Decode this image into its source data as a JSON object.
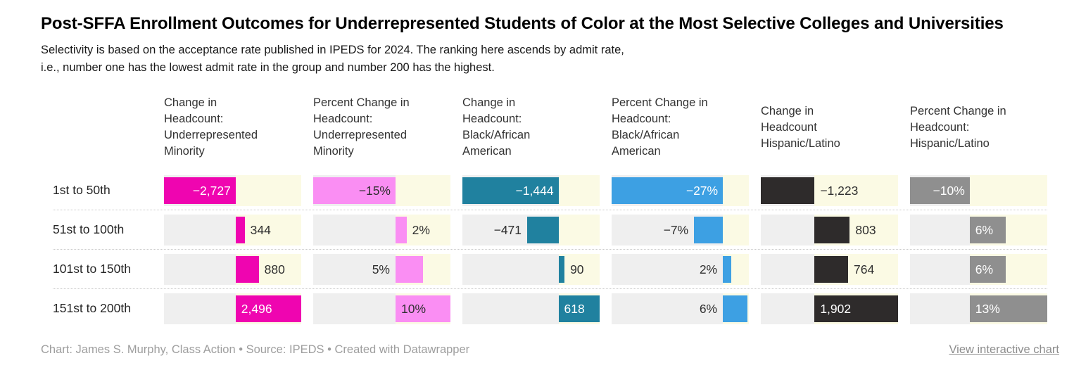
{
  "title": "Post-SFFA Enrollment Outcomes for Underrepresented Students of Color at the Most Selective Colleges and Universities",
  "subtitle": "Selectivity is based on the acceptance rate published in IPEDS for 2024. The ranking here ascends by admit rate,\ni.e., number one has the lowest admit rate in the group and number 200 has the highest.",
  "footer": {
    "byline": "Chart: James S. Murphy, Class Action • Source: IPEDS • Created with Datawrapper",
    "link_label": "View interactive chart"
  },
  "colors": {
    "background": "#ffffff",
    "negative_zone": "#efefef",
    "positive_zone": "#fbfae4",
    "row_separator": "#c9c9c9",
    "header_text": "#333333",
    "dark_label": "#2f2f2f",
    "light_label": "#ffffff",
    "footer_text": "#9e9e9e"
  },
  "chart_data": {
    "type": "bar",
    "layout": "table of horizontal split bar columns, one bar per row per column",
    "grid": "dotted row separators, shaded negative (gray) and positive (cream) zones per column",
    "legend_position": "none",
    "row_labels": [
      "1st to 50th",
      "51st to 100th",
      "101st to 150th",
      "151st to 200th"
    ],
    "columns": [
      {
        "header": "Change in\nHeadcount:\nUnderrepresented\nMinority",
        "color": "#ef05b0",
        "axis": {
          "min": -2727,
          "max": 2496
        },
        "cells": [
          {
            "value": -2727,
            "label": "−2,727",
            "label_pos": "inside",
            "label_tone": "light"
          },
          {
            "value": 344,
            "label": "344",
            "label_pos": "after",
            "label_tone": "dark"
          },
          {
            "value": 880,
            "label": "880",
            "label_pos": "after",
            "label_tone": "dark"
          },
          {
            "value": 2496,
            "label": "2,496",
            "label_pos": "inside",
            "label_tone": "light"
          }
        ]
      },
      {
        "header": "Percent Change in\nHeadcount:\nUnderrepresented\nMinority",
        "color": "#fa8ef3",
        "axis": {
          "min": -15,
          "max": 10
        },
        "cells": [
          {
            "value": -15,
            "label": "−15%",
            "label_pos": "inside",
            "label_tone": "dark"
          },
          {
            "value": 2,
            "label": "2%",
            "label_pos": "after",
            "label_tone": "dark"
          },
          {
            "value": 5,
            "label": "5%",
            "label_pos": "before",
            "label_tone": "dark"
          },
          {
            "value": 10,
            "label": "10%",
            "label_pos": "inside",
            "label_tone": "dark"
          }
        ]
      },
      {
        "header": "Change in\nHeadcount:\nBlack/African\nAmerican",
        "color": "#20819f",
        "axis": {
          "min": -1444,
          "max": 618
        },
        "cells": [
          {
            "value": -1444,
            "label": "−1,444",
            "label_pos": "inside",
            "label_tone": "light"
          },
          {
            "value": -471,
            "label": "−471",
            "label_pos": "before",
            "label_tone": "dark"
          },
          {
            "value": 90,
            "label": "90",
            "label_pos": "after",
            "label_tone": "dark"
          },
          {
            "value": 618,
            "label": "618",
            "label_pos": "inside",
            "label_tone": "light"
          }
        ]
      },
      {
        "header": "Percent Change in\nHeadcount:\nBlack/African\nAmerican",
        "color": "#3da0e3",
        "axis": {
          "min": -27,
          "max": 6.3
        },
        "cells": [
          {
            "value": -27,
            "label": "−27%",
            "label_pos": "inside",
            "label_tone": "light"
          },
          {
            "value": -7,
            "label": "−7%",
            "label_pos": "before",
            "label_tone": "dark"
          },
          {
            "value": 2,
            "label": "2%",
            "label_pos": "before",
            "label_tone": "dark"
          },
          {
            "value": 6,
            "label": "6%",
            "label_pos": "before",
            "label_tone": "dark"
          }
        ]
      },
      {
        "header": "Change in\nHeadcount\nHispanic/Latino",
        "color": "#2e2b2b",
        "axis": {
          "min": -1223,
          "max": 1902
        },
        "cells": [
          {
            "value": -1223,
            "label": "−1,223",
            "label_pos": "after",
            "label_tone": "dark"
          },
          {
            "value": 803,
            "label": "803",
            "label_pos": "after",
            "label_tone": "dark"
          },
          {
            "value": 764,
            "label": "764",
            "label_pos": "after",
            "label_tone": "dark"
          },
          {
            "value": 1902,
            "label": "1,902",
            "label_pos": "inside",
            "label_tone": "light"
          }
        ]
      },
      {
        "header": "Percent Change in\nHeadcount:\nHispanic/Latino",
        "color": "#8f8f8f",
        "axis": {
          "min": -10,
          "max": 13
        },
        "cells": [
          {
            "value": -10,
            "label": "−10%",
            "label_pos": "inside",
            "label_tone": "light"
          },
          {
            "value": 6,
            "label": "6%",
            "label_pos": "inside",
            "label_tone": "light"
          },
          {
            "value": 6,
            "label": "6%",
            "label_pos": "inside",
            "label_tone": "light"
          },
          {
            "value": 13,
            "label": "13%",
            "label_pos": "inside",
            "label_tone": "light"
          }
        ]
      }
    ]
  }
}
